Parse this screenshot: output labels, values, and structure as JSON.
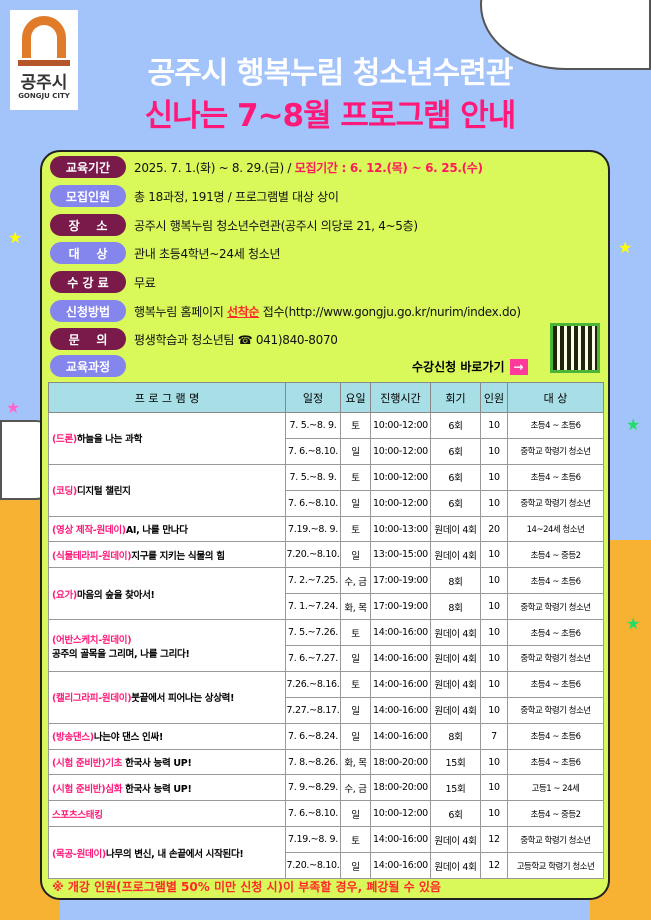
{
  "header": {
    "logo_korean": "공주시",
    "logo_english": "GONGJU CITY",
    "title": "공주시 행복누림 청소년수련관",
    "subtitle": "신나는 7~8월 프로그램 안내"
  },
  "info": [
    {
      "label": "교육기간",
      "value": "2025. 7. 1.(화) ~ 8. 29.(금) / ",
      "highlight": "모집기간 : 6. 12.(목) ~ 6. 25.(수)"
    },
    {
      "label": "모집인원",
      "value": "총 18과정, 191명 / 프로그램별 대상 상이"
    },
    {
      "label": "장    소",
      "value": "공주시 행복누림 청소년수련관(공주시 의당로 21, 4~5층)"
    },
    {
      "label": "대    상",
      "value": "관내 초등4학년~24세 청소년"
    },
    {
      "label": "수 강 료",
      "value": "무료"
    },
    {
      "label": "신청방법",
      "value": "행복누림 홈페이지 ",
      "highlight": "선착순",
      "value2": " 접수(http://www.gongju.go.kr/nurim/index.do)"
    },
    {
      "label": "문    의",
      "value": "평생학습과 청소년팀 ☎ 041)840-8070"
    },
    {
      "label": "교육과정"
    }
  ],
  "apply_link": "수강신청 바로가기",
  "table": {
    "headers": [
      "프 로 그 램 명",
      "일정",
      "요일",
      "진행시간",
      "회기",
      "인원",
      "대 상"
    ],
    "programs": [
      {
        "prefix": "(드론)",
        "title": "하늘을 나는 과학",
        "sessions": [
          [
            "7. 5.~8. 9.",
            "토",
            "10:00-12:00",
            "6회",
            "10",
            "초등4 ~ 초등6"
          ],
          [
            "7. 6.~8.10.",
            "일",
            "10:00-12:00",
            "6회",
            "10",
            "중학교 학령기 청소년"
          ]
        ]
      },
      {
        "prefix": "(코딩)",
        "title": "디지털 챌린지",
        "sessions": [
          [
            "7. 5.~8. 9.",
            "토",
            "10:00-12:00",
            "6회",
            "10",
            "초등4 ~ 초등6"
          ],
          [
            "7. 6.~8.10.",
            "일",
            "10:00-12:00",
            "6회",
            "10",
            "중학교 학령기 청소년"
          ]
        ]
      },
      {
        "prefix": "(영상  제작-원데이)",
        "title": "AI, 나를 만나다",
        "sessions": [
          [
            "7.19.~8. 9.",
            "토",
            "10:00-13:00",
            "원데이 4회",
            "20",
            "14~24세 청소년"
          ]
        ]
      },
      {
        "prefix": "(식물테라피-원데이)",
        "title": "지구를 지키는 식물의 힘",
        "sessions": [
          [
            "7.20.~8.10.",
            "일",
            "13:00-15:00",
            "원데이 4회",
            "10",
            "초등4 ~ 중등2"
          ]
        ]
      },
      {
        "prefix": "(요가)",
        "title": "마음의 숲을 찾아서!",
        "sessions": [
          [
            "7. 2.~7.25.",
            "수, 금",
            "17:00-19:00",
            "8회",
            "10",
            "초등4 ~ 초등6"
          ],
          [
            "7. 1.~7.24.",
            "화, 목",
            "17:00-19:00",
            "8회",
            "10",
            "중학교 학령기 청소년"
          ]
        ]
      },
      {
        "prefix": "(어반스케치-원데이)",
        "title": "공주의 골목을 그리며, 나를 그리다!",
        "break": true,
        "sessions": [
          [
            "7. 5.~7.26.",
            "토",
            "14:00-16:00",
            "원데이 4회",
            "10",
            "초등4 ~ 초등6"
          ],
          [
            "7. 6.~7.27.",
            "일",
            "14:00-16:00",
            "원데이 4회",
            "10",
            "중학교 학령기 청소년"
          ]
        ]
      },
      {
        "prefix": "(캘리그라피-원데이)",
        "title": "붓끝에서 피어나는 상상력!",
        "sessions": [
          [
            "7.26.~8.16.",
            "토",
            "14:00-16:00",
            "원데이 4회",
            "10",
            "초등4 ~ 초등6"
          ],
          [
            "7.27.~8.17.",
            "일",
            "14:00-16:00",
            "원데이 4회",
            "10",
            "중학교 학령기 청소년"
          ]
        ]
      },
      {
        "prefix": "(방송댄스)",
        "title": "나는야 댄스 인싸!",
        "sessions": [
          [
            "7. 6.~8.24.",
            "일",
            "14:00-16:00",
            "8회",
            "7",
            "초등4 ~ 초등6"
          ]
        ]
      },
      {
        "prefix": "(시험 준비반)기초",
        "title": " 한국사 능력 UP!",
        "sessions": [
          [
            "7. 8.~8.26.",
            "화, 목",
            "18:00-20:00",
            "15회",
            "10",
            "초등4 ~ 초등6"
          ]
        ]
      },
      {
        "prefix": "(시험 준비반)심화",
        "title": " 한국사 능력 UP!",
        "sessions": [
          [
            "7. 9.~8.29.",
            "수, 금",
            "18:00-20:00",
            "15회",
            "10",
            "고등1 ~ 24세"
          ]
        ]
      },
      {
        "prefix": "스포츠스태킹",
        "title": "",
        "sessions": [
          [
            "7. 6.~8.10.",
            "일",
            "10:00-12:00",
            "6회",
            "10",
            "초등4 ~ 중등2"
          ]
        ]
      },
      {
        "prefix": "(목공-원데이)",
        "title": "나무의 변신, 내 손끝에서 시작된다!",
        "sessions": [
          [
            "7.19.~8. 9.",
            "토",
            "14:00-16:00",
            "원데이 4회",
            "12",
            "중학교 학령기 청소년"
          ],
          [
            "7.20.~8.10.",
            "일",
            "14:00-16:00",
            "원데이 4회",
            "12",
            "고등학교 학령기 청소년"
          ]
        ]
      }
    ]
  },
  "footnote": "※ 개강 인원(프로그램별 50% 미만 신청 시)이 부족할 경우, 폐강될 수 있음",
  "colors": {
    "sky": "#a3c3fb",
    "panel": "#d9f85a",
    "pink": "#ff1a7a",
    "maroon": "#7a1a4a",
    "periwinkle": "#8585ee",
    "table_header": "#a8dfe6"
  }
}
